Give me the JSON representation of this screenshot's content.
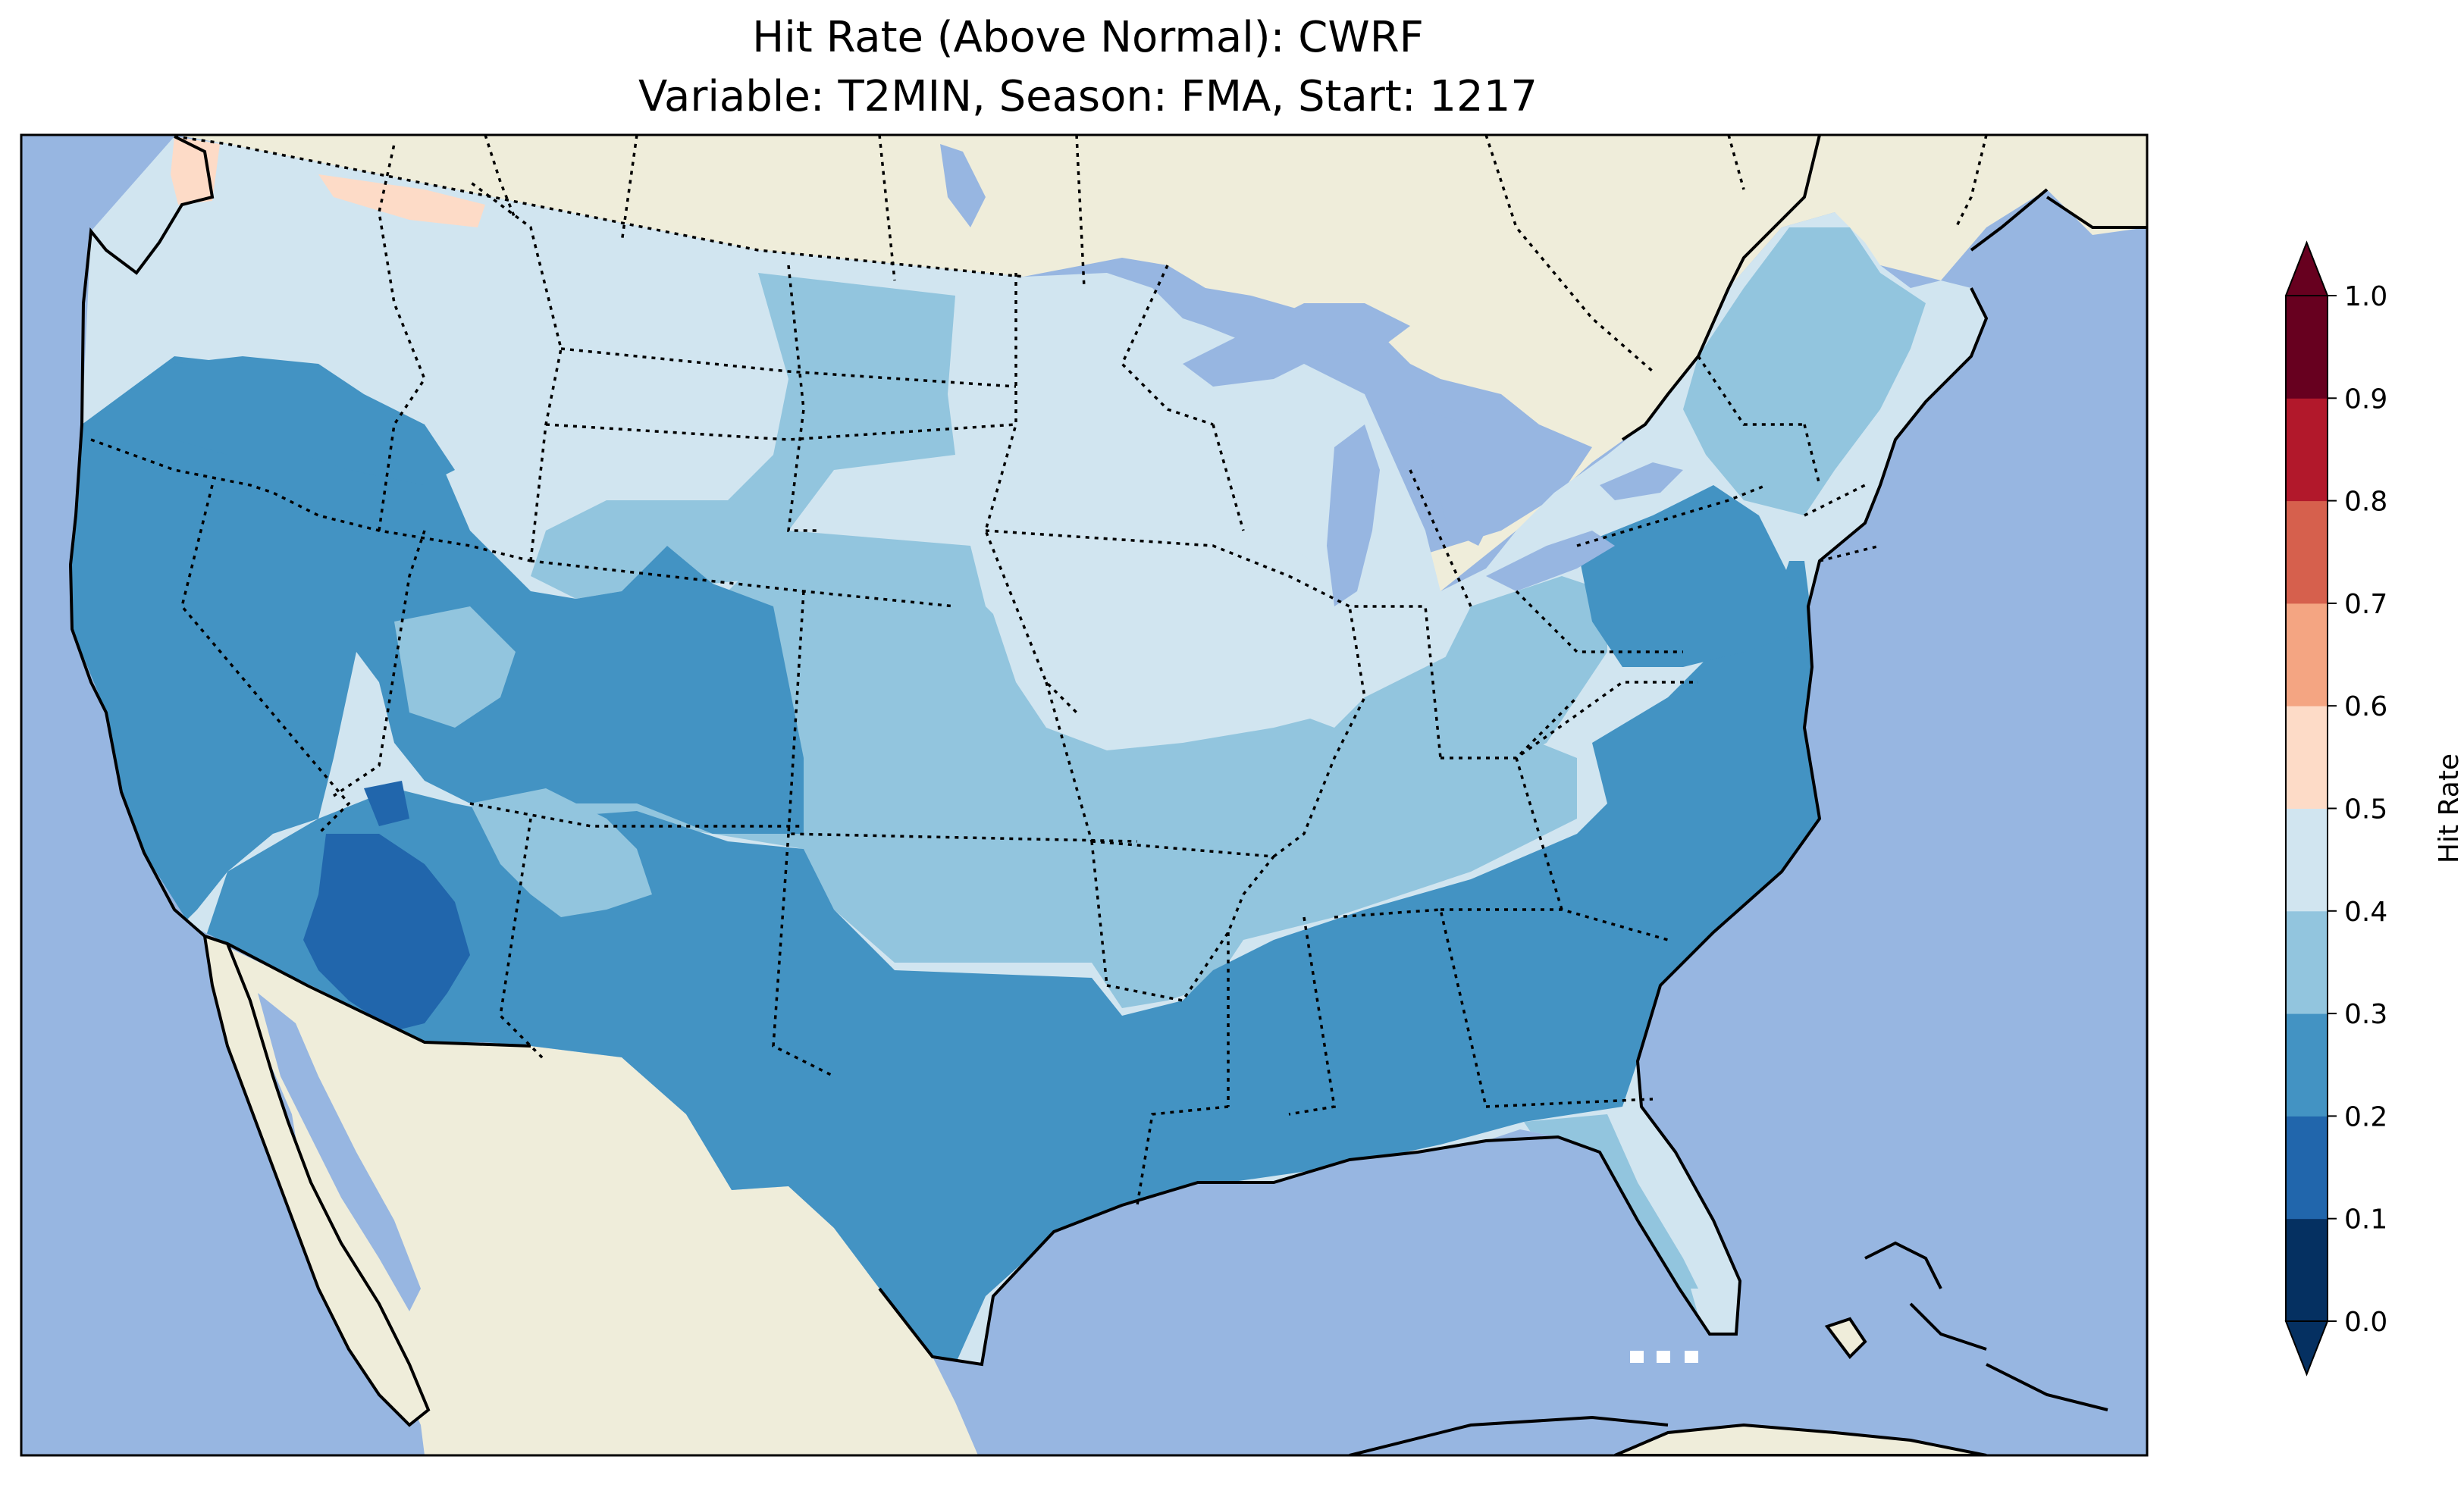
{
  "title": "Hit Rate (Above Normal): CWRF",
  "subtitle": "Variable: T2MIN, Season: FMA, Start: 1217",
  "colors": {
    "ocean": "#97b6e1",
    "land": "#efedda",
    "bin_0_1": "#053061",
    "bin_1_2": "#2166ac",
    "bin_2_3": "#4393c3",
    "bin_3_4": "#92c5de",
    "bin_4_5": "#d1e5f0",
    "bin_5_6": "#fddbc7",
    "bin_6_7": "#f4a582",
    "bin_7_8": "#d6604d",
    "bin_8_9": "#b2182b",
    "bin_9_10": "#67001f"
  },
  "colorbar": {
    "label": "Hit Rate",
    "ticks": [
      "0.0",
      "0.1",
      "0.2",
      "0.3",
      "0.4",
      "0.5",
      "0.6",
      "0.7",
      "0.8",
      "0.9",
      "1.0"
    ],
    "bounds": [
      0.0,
      0.1,
      0.2,
      0.3,
      0.4,
      0.5,
      0.6,
      0.7,
      0.8,
      0.9,
      1.0
    ],
    "extend": "both"
  },
  "map_regions": {
    "northern_tier": 0.45,
    "pacific_northwest_border": 0.55,
    "west_coast_great_basin": 0.25,
    "arizona_desert": 0.15,
    "colorado_plateau": 0.35,
    "great_plains": 0.35,
    "midwest": 0.45,
    "southern_plains_and_gulf": 0.25,
    "southeast_and_mid_atlantic": 0.25,
    "florida_peninsula": 0.35,
    "new_england": 0.35
  }
}
